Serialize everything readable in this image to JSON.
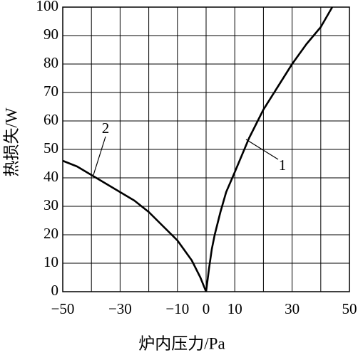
{
  "chart_data": {
    "type": "line",
    "xlabel": "炉内压力/Pa",
    "ylabel": "热损失/W",
    "series": [
      {
        "name": "1",
        "color": "#000000",
        "x": [
          0,
          1,
          2,
          3,
          5,
          7,
          10,
          15,
          20,
          25,
          30,
          35,
          40,
          44
        ],
        "values": [
          0,
          8,
          15,
          20,
          28,
          35,
          42,
          54,
          64,
          72,
          80,
          87,
          93,
          100
        ]
      },
      {
        "name": "2",
        "color": "#000000",
        "x": [
          -50,
          -45,
          -40,
          -35,
          -30,
          -25,
          -20,
          -15,
          -10,
          -5,
          -2,
          0
        ],
        "values": [
          46,
          44,
          41,
          38,
          35,
          32,
          28,
          23,
          18,
          11,
          5,
          0
        ]
      }
    ],
    "xlim": [
      -50,
      50
    ],
    "ylim": [
      0,
      100
    ],
    "xticks": [
      {
        "value": -50,
        "label": "−50"
      },
      {
        "value": -30,
        "label": "−30"
      },
      {
        "value": -10,
        "label": "−10"
      },
      0,
      10,
      30,
      50
    ],
    "xminor": [
      -40,
      -20,
      20,
      40
    ],
    "yticks": [
      0,
      10,
      20,
      30,
      40,
      50,
      60,
      70,
      80,
      90,
      100
    ],
    "grid": true
  }
}
